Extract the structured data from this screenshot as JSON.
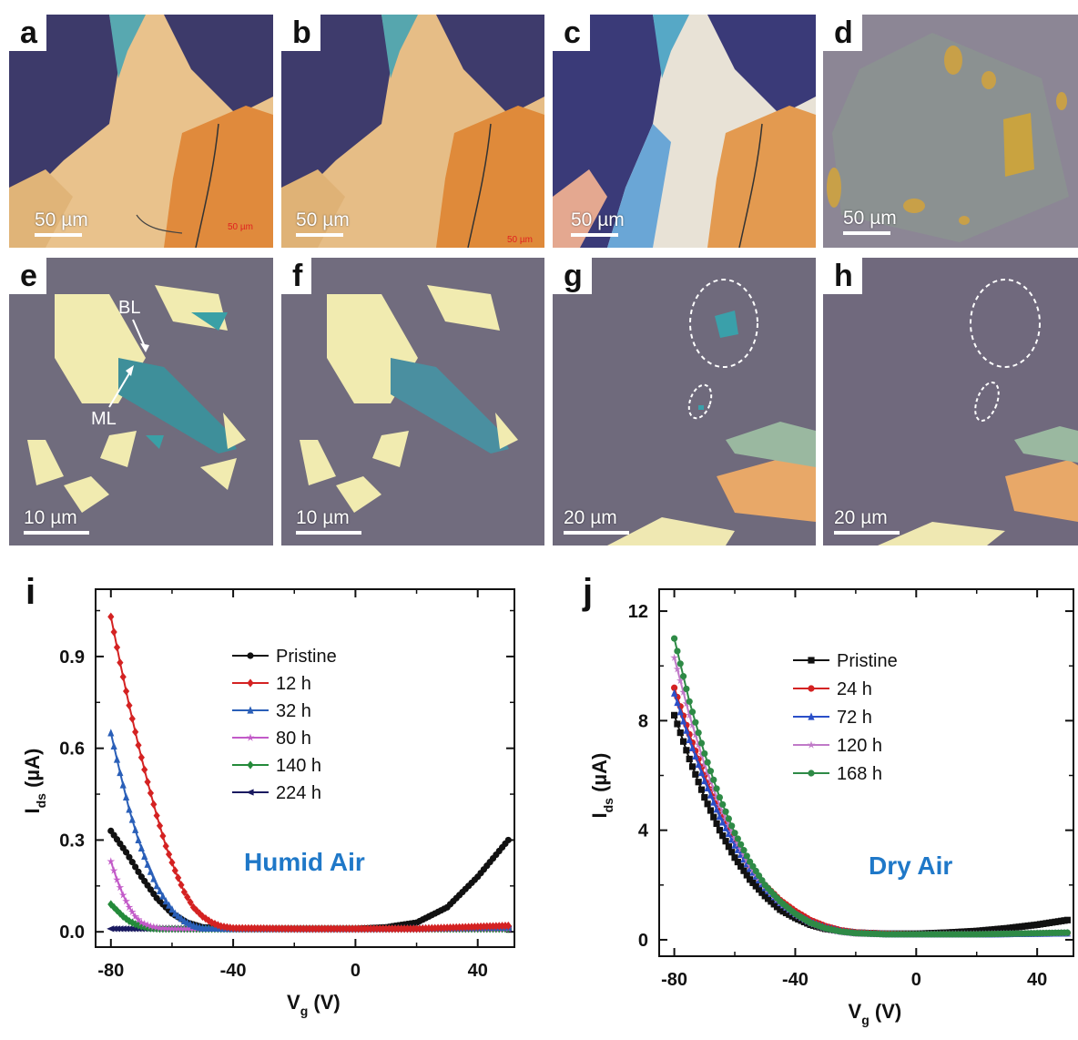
{
  "panels": [
    {
      "label": "a",
      "scale": "50 µm",
      "tiny": "50 µm"
    },
    {
      "label": "b",
      "scale": "50 µm",
      "tiny": "50 µm"
    },
    {
      "label": "c",
      "scale": "50 µm"
    },
    {
      "label": "d",
      "scale": "50 µm"
    },
    {
      "label": "e",
      "scale": "10 µm",
      "bl": "BL",
      "ml": "ML"
    },
    {
      "label": "f",
      "scale": "10 µm"
    },
    {
      "label": "g",
      "scale": "20 µm"
    },
    {
      "label": "h",
      "scale": "20 µm"
    }
  ],
  "colors": {
    "Pristine": "#111111",
    "12 h": "#d42222",
    "32 h": "#2a5fb8",
    "80 h": "#c25ac8",
    "140 h": "#248a3a",
    "224 h": "#1a1a60",
    "24 h": "#d42222",
    "72 h": "#2a4fc8",
    "120 h": "#c07ac8",
    "168 h": "#2e8a46",
    "annot": "#1f78c8"
  },
  "chart_data": [
    {
      "panel": "i",
      "type": "line",
      "xlabel": "V",
      "xlabel_sub": "g",
      "xlabel_unit": "(V)",
      "ylabel": "I",
      "ylabel_sub": "ds",
      "ylabel_unit": "(µA)",
      "xlim": [
        -85,
        52
      ],
      "ylim": [
        -0.05,
        1.12
      ],
      "xticks": [
        -80,
        -40,
        0,
        40
      ],
      "xtick_labels": [
        "-80",
        "-40",
        "0",
        "40"
      ],
      "yticks": [
        0.0,
        0.3,
        0.6,
        0.9
      ],
      "ytick_labels": [
        "0.0",
        "0.3",
        "0.6",
        "0.9"
      ],
      "annotation": "Humid Air",
      "legend_position": "top-right",
      "series": [
        {
          "name": "Pristine",
          "marker": "circle",
          "points": [
            [
              -80,
              0.33
            ],
            [
              -75,
              0.26
            ],
            [
              -70,
              0.18
            ],
            [
              -65,
              0.11
            ],
            [
              -60,
              0.06
            ],
            [
              -55,
              0.03
            ],
            [
              -50,
              0.015
            ],
            [
              -40,
              0.01
            ],
            [
              -20,
              0.01
            ],
            [
              0,
              0.01
            ],
            [
              10,
              0.015
            ],
            [
              20,
              0.03
            ],
            [
              30,
              0.08
            ],
            [
              40,
              0.18
            ],
            [
              45,
              0.24
            ],
            [
              50,
              0.3
            ]
          ]
        },
        {
          "name": "12 h",
          "marker": "diamond",
          "points": [
            [
              -80,
              1.03
            ],
            [
              -77,
              0.88
            ],
            [
              -74,
              0.74
            ],
            [
              -71,
              0.61
            ],
            [
              -68,
              0.49
            ],
            [
              -65,
              0.38
            ],
            [
              -62,
              0.28
            ],
            [
              -59,
              0.2
            ],
            [
              -56,
              0.13
            ],
            [
              -53,
              0.08
            ],
            [
              -50,
              0.05
            ],
            [
              -47,
              0.03
            ],
            [
              -44,
              0.018
            ],
            [
              -40,
              0.012
            ],
            [
              -20,
              0.01
            ],
            [
              0,
              0.01
            ],
            [
              20,
              0.01
            ],
            [
              50,
              0.02
            ]
          ]
        },
        {
          "name": "32 h",
          "marker": "triangle",
          "points": [
            [
              -80,
              0.65
            ],
            [
              -77,
              0.52
            ],
            [
              -74,
              0.4
            ],
            [
              -71,
              0.3
            ],
            [
              -68,
              0.22
            ],
            [
              -65,
              0.15
            ],
            [
              -62,
              0.1
            ],
            [
              -59,
              0.06
            ],
            [
              -56,
              0.035
            ],
            [
              -53,
              0.02
            ],
            [
              -50,
              0.012
            ],
            [
              -40,
              0.01
            ],
            [
              0,
              0.01
            ],
            [
              50,
              0.015
            ]
          ]
        },
        {
          "name": "80 h",
          "marker": "star",
          "points": [
            [
              -80,
              0.23
            ],
            [
              -78,
              0.17
            ],
            [
              -76,
              0.12
            ],
            [
              -74,
              0.08
            ],
            [
              -72,
              0.05
            ],
            [
              -70,
              0.03
            ],
            [
              -67,
              0.018
            ],
            [
              -64,
              0.012
            ],
            [
              -60,
              0.01
            ],
            [
              0,
              0.01
            ],
            [
              50,
              0.01
            ]
          ]
        },
        {
          "name": "140 h",
          "marker": "diamond",
          "points": [
            [
              -80,
              0.09
            ],
            [
              -78,
              0.07
            ],
            [
              -76,
              0.05
            ],
            [
              -74,
              0.035
            ],
            [
              -72,
              0.025
            ],
            [
              -70,
              0.018
            ],
            [
              -67,
              0.012
            ],
            [
              -64,
              0.01
            ],
            [
              0,
              0.01
            ],
            [
              50,
              0.01
            ]
          ]
        },
        {
          "name": "224 h",
          "marker": "left-triangle",
          "points": [
            [
              -80,
              0.01
            ],
            [
              -40,
              0.01
            ],
            [
              0,
              0.01
            ],
            [
              50,
              0.01
            ]
          ]
        }
      ]
    },
    {
      "panel": "j",
      "type": "line",
      "xlabel": "V",
      "xlabel_sub": "g",
      "xlabel_unit": "(V)",
      "ylabel": "I",
      "ylabel_sub": "ds",
      "ylabel_unit": "(µA)",
      "xlim": [
        -85,
        52
      ],
      "ylim": [
        -0.6,
        12.8
      ],
      "xticks": [
        -80,
        -40,
        0,
        40
      ],
      "xtick_labels": [
        "-80",
        "-40",
        "0",
        "40"
      ],
      "yticks": [
        0,
        4,
        8,
        12
      ],
      "ytick_labels": [
        "0",
        "4",
        "8",
        "12"
      ],
      "annotation": "Dry Air",
      "legend_position": "top-center",
      "series": [
        {
          "name": "Pristine",
          "marker": "square",
          "points": [
            [
              -80,
              8.2
            ],
            [
              -75,
              6.6
            ],
            [
              -70,
              5.2
            ],
            [
              -65,
              4.0
            ],
            [
              -60,
              3.0
            ],
            [
              -55,
              2.2
            ],
            [
              -50,
              1.6
            ],
            [
              -45,
              1.1
            ],
            [
              -40,
              0.8
            ],
            [
              -35,
              0.55
            ],
            [
              -30,
              0.4
            ],
            [
              -25,
              0.32
            ],
            [
              -20,
              0.26
            ],
            [
              -10,
              0.22
            ],
            [
              0,
              0.22
            ],
            [
              10,
              0.26
            ],
            [
              20,
              0.32
            ],
            [
              30,
              0.42
            ],
            [
              40,
              0.55
            ],
            [
              50,
              0.72
            ]
          ]
        },
        {
          "name": "24 h",
          "marker": "circle",
          "points": [
            [
              -80,
              9.2
            ],
            [
              -75,
              7.5
            ],
            [
              -70,
              6.0
            ],
            [
              -65,
              4.7
            ],
            [
              -60,
              3.6
            ],
            [
              -55,
              2.7
            ],
            [
              -50,
              2.0
            ],
            [
              -45,
              1.45
            ],
            [
              -40,
              1.05
            ],
            [
              -35,
              0.72
            ],
            [
              -30,
              0.5
            ],
            [
              -25,
              0.35
            ],
            [
              -20,
              0.27
            ],
            [
              -10,
              0.22
            ],
            [
              0,
              0.2
            ],
            [
              20,
              0.2
            ],
            [
              50,
              0.25
            ]
          ]
        },
        {
          "name": "72 h",
          "marker": "triangle",
          "points": [
            [
              -80,
              9.0
            ],
            [
              -75,
              7.3
            ],
            [
              -70,
              5.8
            ],
            [
              -65,
              4.5
            ],
            [
              -60,
              3.45
            ],
            [
              -55,
              2.6
            ],
            [
              -50,
              1.9
            ],
            [
              -45,
              1.35
            ],
            [
              -40,
              0.95
            ],
            [
              -35,
              0.65
            ],
            [
              -30,
              0.45
            ],
            [
              -25,
              0.32
            ],
            [
              -20,
              0.25
            ],
            [
              -10,
              0.21
            ],
            [
              0,
              0.2
            ],
            [
              20,
              0.2
            ],
            [
              50,
              0.24
            ]
          ]
        },
        {
          "name": "120 h",
          "marker": "star",
          "points": [
            [
              -80,
              10.3
            ],
            [
              -75,
              8.2
            ],
            [
              -70,
              6.4
            ],
            [
              -65,
              4.9
            ],
            [
              -60,
              3.7
            ],
            [
              -55,
              2.7
            ],
            [
              -50,
              1.95
            ],
            [
              -45,
              1.35
            ],
            [
              -40,
              0.92
            ],
            [
              -35,
              0.6
            ],
            [
              -30,
              0.4
            ],
            [
              -25,
              0.28
            ],
            [
              -20,
              0.22
            ],
            [
              -10,
              0.2
            ],
            [
              0,
              0.2
            ],
            [
              20,
              0.2
            ],
            [
              50,
              0.25
            ]
          ]
        },
        {
          "name": "168 h",
          "marker": "circle",
          "points": [
            [
              -80,
              11.0
            ],
            [
              -75,
              8.7
            ],
            [
              -70,
              6.8
            ],
            [
              -65,
              5.2
            ],
            [
              -60,
              3.9
            ],
            [
              -55,
              2.85
            ],
            [
              -50,
              2.0
            ],
            [
              -45,
              1.4
            ],
            [
              -40,
              0.95
            ],
            [
              -35,
              0.62
            ],
            [
              -30,
              0.42
            ],
            [
              -25,
              0.3
            ],
            [
              -20,
              0.24
            ],
            [
              -10,
              0.2
            ],
            [
              0,
              0.2
            ],
            [
              20,
              0.2
            ],
            [
              50,
              0.26
            ]
          ]
        }
      ]
    }
  ]
}
